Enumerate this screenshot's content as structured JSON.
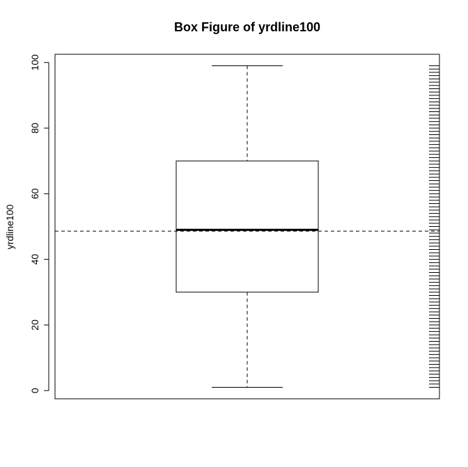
{
  "chart_data": {
    "type": "box",
    "title": "Box Figure of yrdline100",
    "ylabel": "yrdline100",
    "xlabel": "",
    "ylim": [
      -2.5,
      102.5
    ],
    "yticks": [
      0,
      20,
      40,
      60,
      80,
      100
    ],
    "ytick_labels": [
      "0",
      "20",
      "40",
      "60",
      "80",
      "100"
    ],
    "box": {
      "min": 1,
      "q1": 30,
      "median": 49,
      "q3": 70,
      "max": 99
    },
    "mean_line": 48.6,
    "rug": [
      1,
      2,
      3,
      4,
      5,
      6,
      7,
      8,
      9,
      10,
      11,
      12,
      13,
      14,
      15,
      16,
      17,
      18,
      19,
      20,
      21,
      22,
      23,
      24,
      25,
      26,
      27,
      28,
      29,
      30,
      31,
      32,
      33,
      34,
      35,
      36,
      37,
      38,
      39,
      40,
      41,
      42,
      43,
      44,
      45,
      46,
      47,
      48,
      49,
      50,
      51,
      52,
      53,
      54,
      55,
      56,
      57,
      58,
      59,
      60,
      61,
      62,
      63,
      64,
      65,
      66,
      67,
      68,
      69,
      70,
      71,
      72,
      73,
      74,
      75,
      76,
      77,
      78,
      79,
      80,
      81,
      82,
      83,
      84,
      85,
      86,
      87,
      88,
      89,
      90,
      91,
      92,
      93,
      94,
      95,
      96,
      97,
      98,
      99
    ],
    "grid": false,
    "legend": "none"
  }
}
